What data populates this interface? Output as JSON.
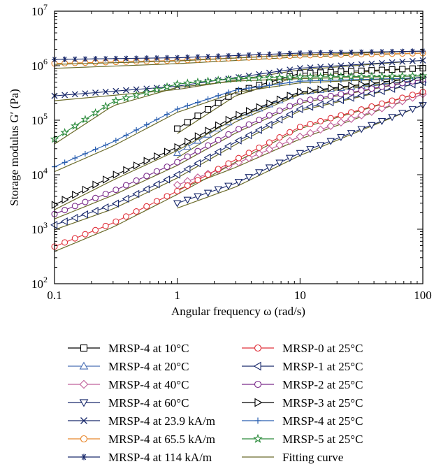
{
  "chart_data": {
    "type": "line",
    "xlabel": "Angular frequency ω (rad/s)",
    "ylabel": "Storage modulus G′ (Pa)",
    "xscale": "log",
    "yscale": "log",
    "xlim": [
      0.1,
      100
    ],
    "ylim": [
      100,
      10000000
    ],
    "x_ticks": [
      {
        "value": 0.1,
        "label": "0.1"
      },
      {
        "value": 1,
        "label": "1"
      },
      {
        "value": 10,
        "label": "10"
      },
      {
        "value": 100,
        "label": "100"
      }
    ],
    "y_ticks": [
      {
        "value": 100,
        "base": "10",
        "exp": "2"
      },
      {
        "value": 1000,
        "base": "10",
        "exp": "3"
      },
      {
        "value": 10000,
        "base": "10",
        "exp": "4"
      },
      {
        "value": 100000,
        "base": "10",
        "exp": "5"
      },
      {
        "value": 1000000,
        "base": "10",
        "exp": "6"
      },
      {
        "value": 10000000,
        "base": "10",
        "exp": "7"
      }
    ],
    "legend_position": "below",
    "fitting_curve_label": "Fitting curve",
    "fitting_curve_color": "#6b6b2a",
    "series": [
      {
        "name": "MRSP-4 at 10°C",
        "marker": "square",
        "color": "#000000",
        "x_range": [
          1,
          100
        ],
        "y_points": [
          [
            1,
            70000
          ],
          [
            3,
            330000
          ],
          [
            10,
            720000
          ],
          [
            100,
            900000
          ]
        ]
      },
      {
        "name": "MRSP-4 at 20°C",
        "marker": "triangle-up",
        "color": "#4a6fb5",
        "x_range": [
          1,
          100
        ],
        "y_points": [
          [
            1,
            25000
          ],
          [
            3,
            110000
          ],
          [
            10,
            330000
          ],
          [
            100,
            550000
          ]
        ]
      },
      {
        "name": "MRSP-4 at 40°C",
        "marker": "diamond",
        "color": "#c0609a",
        "x_range": [
          1,
          100
        ],
        "y_points": [
          [
            1,
            6500
          ],
          [
            3,
            16000
          ],
          [
            10,
            50000
          ],
          [
            100,
            300000
          ]
        ]
      },
      {
        "name": "MRSP-4 at 60°C",
        "marker": "triangle-down",
        "color": "#1a2a6c",
        "x_range": [
          1,
          100
        ],
        "y_points": [
          [
            1,
            3000
          ],
          [
            3,
            7000
          ],
          [
            10,
            25000
          ],
          [
            100,
            190000
          ]
        ]
      },
      {
        "name": "MRSP-4 at 23.9 kA/m",
        "marker": "x",
        "color": "#1a2a6c",
        "x_range": [
          0.1,
          100
        ],
        "y_points": [
          [
            0.1,
            280000
          ],
          [
            1,
            420000
          ],
          [
            10,
            900000
          ],
          [
            100,
            1250000
          ]
        ]
      },
      {
        "name": "MRSP-4 at 65.5 kA/m",
        "marker": "circle",
        "color": "#e8862a",
        "x_range": [
          0.1,
          100
        ],
        "y_points": [
          [
            0.1,
            1100000
          ],
          [
            1,
            1250000
          ],
          [
            10,
            1550000
          ],
          [
            100,
            1700000
          ]
        ]
      },
      {
        "name": "MRSP-4 at 114 kA/m",
        "marker": "star6",
        "color": "#1a2a6c",
        "x_range": [
          0.1,
          100
        ],
        "y_points": [
          [
            0.1,
            1300000
          ],
          [
            1,
            1400000
          ],
          [
            10,
            1700000
          ],
          [
            100,
            1850000
          ]
        ]
      },
      {
        "name": "MRSP-0 at 25°C",
        "marker": "circle",
        "color": "#e0303a",
        "x_range": [
          0.1,
          100
        ],
        "y_points": [
          [
            0.1,
            480
          ],
          [
            0.3,
            1300
          ],
          [
            1,
            5000
          ],
          [
            3,
            19000
          ],
          [
            10,
            75000
          ],
          [
            100,
            330000
          ]
        ]
      },
      {
        "name": "MRSP-1 at 25°C",
        "marker": "triangle-left",
        "color": "#1a2a6c",
        "x_range": [
          0.1,
          100
        ],
        "y_points": [
          [
            0.1,
            1200
          ],
          [
            0.3,
            2800
          ],
          [
            1,
            10000
          ],
          [
            3,
            40000
          ],
          [
            10,
            160000
          ],
          [
            100,
            500000
          ]
        ]
      },
      {
        "name": "MRSP-2 at 25°C",
        "marker": "circle",
        "color": "#7a2a8a",
        "x_range": [
          0.1,
          100
        ],
        "y_points": [
          [
            0.1,
            1900
          ],
          [
            0.3,
            5000
          ],
          [
            1,
            17000
          ],
          [
            3,
            65000
          ],
          [
            10,
            220000
          ],
          [
            100,
            560000
          ]
        ]
      },
      {
        "name": "MRSP-3 at 25°C",
        "marker": "triangle-right",
        "color": "#000000",
        "x_range": [
          0.1,
          100
        ],
        "y_points": [
          [
            0.1,
            2800
          ],
          [
            0.3,
            9500
          ],
          [
            1,
            32000
          ],
          [
            3,
            120000
          ],
          [
            10,
            330000
          ],
          [
            100,
            620000
          ]
        ]
      },
      {
        "name": "MRSP-4 at 25°C",
        "marker": "plus",
        "color": "#2a5fb0",
        "x_range": [
          0.1,
          100
        ],
        "y_points": [
          [
            0.1,
            14000
          ],
          [
            0.3,
            40000
          ],
          [
            1,
            160000
          ],
          [
            3,
            360000
          ],
          [
            10,
            520000
          ],
          [
            100,
            600000
          ]
        ]
      },
      {
        "name": "MRSP-5 at 25°C",
        "marker": "star5",
        "color": "#2a8a3a",
        "x_range": [
          0.1,
          100
        ],
        "y_points": [
          [
            0.1,
            45000
          ],
          [
            0.3,
            220000
          ],
          [
            1,
            460000
          ],
          [
            3,
            580000
          ],
          [
            10,
            620000
          ],
          [
            100,
            650000
          ]
        ]
      }
    ]
  }
}
